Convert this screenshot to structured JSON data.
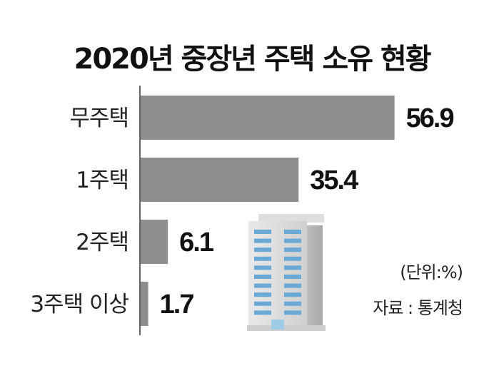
{
  "chart_data": {
    "type": "bar",
    "orientation": "horizontal",
    "title": "2020년 중장년 주택 소유 현황",
    "categories": [
      "무주택",
      "1주택",
      "2주택",
      "3주택 이상"
    ],
    "values": [
      56.9,
      35.4,
      6.1,
      1.7
    ],
    "value_labels": [
      "56.9",
      "35.4",
      "6.1",
      "1.7"
    ],
    "xlim": [
      0,
      60
    ],
    "grid": false,
    "bar_color": "#8e8e8e",
    "unit_note": "(단위:%)",
    "source": "자료 : 통계청"
  }
}
